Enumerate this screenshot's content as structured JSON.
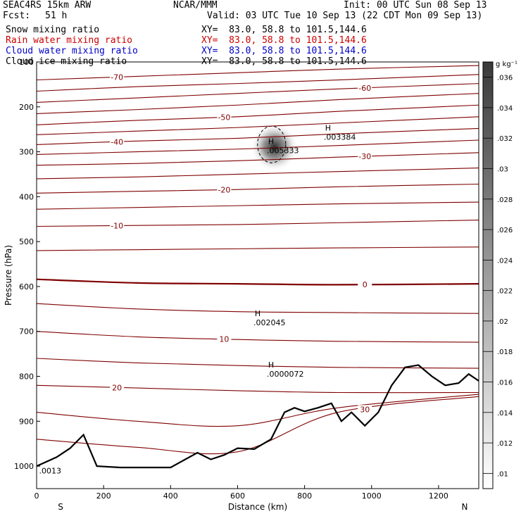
{
  "header": {
    "model": "SEAC4RS 15km ARW",
    "org": "NCAR/MMM",
    "init": "Init: 00 UTC Sun 08 Sep 13",
    "fcst_label": "Fcst:",
    "fcst_value": "51 h",
    "valid": "Valid: 03 UTC Tue 10 Sep 13 (22 CDT Mon 09 Sep 13)"
  },
  "fields": [
    {
      "name": "Snow mixing ratio",
      "xy": "XY=  83.0, 58.8 to 101.5,144.6",
      "color": "#000000"
    },
    {
      "name": "Rain water mixing ratio",
      "xy": "XY=  83.0, 58.8 to 101.5,144.6",
      "color": "#cc0000"
    },
    {
      "name": "Cloud water mixing ratio",
      "xy": "XY=  83.0, 58.8 to 101.5,144.6",
      "color": "#0000cc"
    },
    {
      "name": "Cloud ice mixing ratio",
      "xy": "XY=  83.0, 58.8 to 101.5,144.6",
      "color": "#000000"
    }
  ],
  "chart_data": {
    "type": "cross-section",
    "xlabel": "Distance (km)",
    "ylabel": "Pressure (hPa)",
    "xlim": [
      0,
      1320
    ],
    "ylim": [
      1050,
      100
    ],
    "x_ticks": [
      0,
      200,
      400,
      600,
      800,
      1000,
      1200
    ],
    "y_ticks": [
      100,
      200,
      300,
      400,
      500,
      600,
      700,
      800,
      900,
      1000
    ],
    "x_end_labels": {
      "left": "S",
      "right": "N"
    },
    "colorbar": {
      "unit": "g kg⁻¹",
      "ticks": [
        ".01",
        ".012",
        ".014",
        ".016",
        ".018",
        ".02",
        ".022",
        ".024",
        ".026",
        ".028",
        ".03",
        ".032",
        ".034",
        ".036"
      ],
      "min": 0.009,
      "max": 0.037
    },
    "temperature_contours": [
      {
        "value": -70,
        "label": "-70",
        "points": [
          [
            0,
            140
          ],
          [
            300,
            132
          ],
          [
            600,
            124
          ],
          [
            900,
            116
          ],
          [
            1320,
            108
          ]
        ]
      },
      {
        "value": -65,
        "label": "",
        "points": [
          [
            0,
            165
          ],
          [
            300,
            155
          ],
          [
            600,
            148
          ],
          [
            900,
            140
          ],
          [
            1320,
            128
          ]
        ]
      },
      {
        "value": -60,
        "label": "-60",
        "points": [
          [
            0,
            190
          ],
          [
            300,
            180
          ],
          [
            600,
            170
          ],
          [
            900,
            160
          ],
          [
            1320,
            148
          ]
        ]
      },
      {
        "value": -55,
        "label": "",
        "points": [
          [
            0,
            215
          ],
          [
            300,
            206
          ],
          [
            600,
            196
          ],
          [
            900,
            184
          ],
          [
            1320,
            170
          ]
        ]
      },
      {
        "value": -50,
        "label": "-50",
        "points": [
          [
            0,
            240
          ],
          [
            300,
            230
          ],
          [
            600,
            222
          ],
          [
            900,
            210
          ],
          [
            1320,
            196
          ]
        ]
      },
      {
        "value": -45,
        "label": "",
        "points": [
          [
            0,
            262
          ],
          [
            300,
            254
          ],
          [
            600,
            246
          ],
          [
            900,
            236
          ],
          [
            1320,
            222
          ]
        ]
      },
      {
        "value": -40,
        "label": "-40",
        "points": [
          [
            0,
            284
          ],
          [
            300,
            276
          ],
          [
            600,
            270
          ],
          [
            900,
            260
          ],
          [
            1320,
            248
          ]
        ]
      },
      {
        "value": -35,
        "label": "",
        "points": [
          [
            0,
            306
          ],
          [
            300,
            300
          ],
          [
            600,
            294
          ],
          [
            900,
            286
          ],
          [
            1320,
            274
          ]
        ]
      },
      {
        "value": -30,
        "label": "-30",
        "points": [
          [
            0,
            330
          ],
          [
            300,
            326
          ],
          [
            600,
            320
          ],
          [
            900,
            312
          ],
          [
            1320,
            302
          ]
        ]
      },
      {
        "value": -25,
        "label": "",
        "points": [
          [
            0,
            360
          ],
          [
            300,
            356
          ],
          [
            600,
            350
          ],
          [
            900,
            344
          ],
          [
            1320,
            336
          ]
        ]
      },
      {
        "value": -20,
        "label": "-20",
        "points": [
          [
            0,
            392
          ],
          [
            300,
            388
          ],
          [
            600,
            384
          ],
          [
            900,
            378
          ],
          [
            1320,
            372
          ]
        ]
      },
      {
        "value": -15,
        "label": "",
        "points": [
          [
            0,
            428
          ],
          [
            300,
            424
          ],
          [
            600,
            420
          ],
          [
            900,
            416
          ],
          [
            1320,
            412
          ]
        ]
      },
      {
        "value": -10,
        "label": "-10",
        "points": [
          [
            0,
            466
          ],
          [
            300,
            464
          ],
          [
            600,
            462
          ],
          [
            900,
            458
          ],
          [
            1320,
            452
          ]
        ]
      },
      {
        "value": -5,
        "label": "",
        "points": [
          [
            0,
            520
          ],
          [
            300,
            518
          ],
          [
            600,
            516
          ],
          [
            900,
            514
          ],
          [
            1320,
            512
          ]
        ]
      },
      {
        "value": 0,
        "label": "0",
        "points": [
          [
            0,
            584
          ],
          [
            300,
            592
          ],
          [
            600,
            594
          ],
          [
            900,
            596
          ],
          [
            1320,
            594
          ]
        ]
      },
      {
        "value": 5,
        "label": "",
        "points": [
          [
            0,
            638
          ],
          [
            300,
            650
          ],
          [
            600,
            656
          ],
          [
            900,
            658
          ],
          [
            1320,
            660
          ]
        ]
      },
      {
        "value": 10,
        "label": "10",
        "points": [
          [
            0,
            700
          ],
          [
            300,
            712
          ],
          [
            600,
            718
          ],
          [
            900,
            722
          ],
          [
            1320,
            724
          ]
        ]
      },
      {
        "value": 15,
        "label": "",
        "points": [
          [
            0,
            760
          ],
          [
            300,
            770
          ],
          [
            600,
            776
          ],
          [
            900,
            780
          ],
          [
            1320,
            782
          ]
        ]
      },
      {
        "value": 20,
        "label": "20",
        "points": [
          [
            0,
            820
          ],
          [
            300,
            826
          ],
          [
            600,
            832
          ],
          [
            900,
            836
          ],
          [
            1320,
            836
          ]
        ]
      },
      {
        "value": 25,
        "label": "",
        "points": [
          [
            0,
            880
          ],
          [
            300,
            900
          ],
          [
            600,
            910
          ],
          [
            900,
            870
          ],
          [
            1320,
            840
          ]
        ]
      },
      {
        "value": 30,
        "label": "30",
        "points": [
          [
            0,
            940
          ],
          [
            300,
            958
          ],
          [
            600,
            968
          ],
          [
            900,
            880
          ],
          [
            1320,
            845
          ]
        ]
      }
    ],
    "terrain": [
      [
        0,
        1000
      ],
      [
        60,
        980
      ],
      [
        100,
        960
      ],
      [
        140,
        930
      ],
      [
        180,
        1000
      ],
      [
        250,
        1003
      ],
      [
        400,
        1003
      ],
      [
        480,
        970
      ],
      [
        520,
        985
      ],
      [
        560,
        975
      ],
      [
        600,
        960
      ],
      [
        650,
        962
      ],
      [
        700,
        940
      ],
      [
        740,
        880
      ],
      [
        770,
        870
      ],
      [
        800,
        878
      ],
      [
        840,
        870
      ],
      [
        880,
        860
      ],
      [
        910,
        900
      ],
      [
        940,
        880
      ],
      [
        980,
        910
      ],
      [
        1020,
        880
      ],
      [
        1060,
        820
      ],
      [
        1100,
        780
      ],
      [
        1140,
        775
      ],
      [
        1180,
        800
      ],
      [
        1220,
        820
      ],
      [
        1260,
        815
      ],
      [
        1290,
        795
      ],
      [
        1320,
        810
      ]
    ],
    "maxima": [
      {
        "field": "Snow mixing ratio",
        "label": "H",
        "value": ".005333",
        "x": 700,
        "p": 292
      },
      {
        "field": "Cloud ice mixing ratio",
        "label": "H",
        "value": ".003384",
        "x": 870,
        "p": 262
      },
      {
        "field": "Cloud water mixing ratio",
        "label": "H",
        "value": ".002045",
        "x": 660,
        "p": 675
      },
      {
        "field": "Rain water mixing ratio",
        "label": "H",
        "value": ".0000072",
        "x": 700,
        "p": 790
      },
      {
        "field": "Cloud water mixing ratio",
        "label": "",
        "value": ".0013",
        "x": 20,
        "p": 1005
      }
    ],
    "shading": [
      {
        "x": 710,
        "p": 290,
        "peak": 0.036
      }
    ]
  }
}
